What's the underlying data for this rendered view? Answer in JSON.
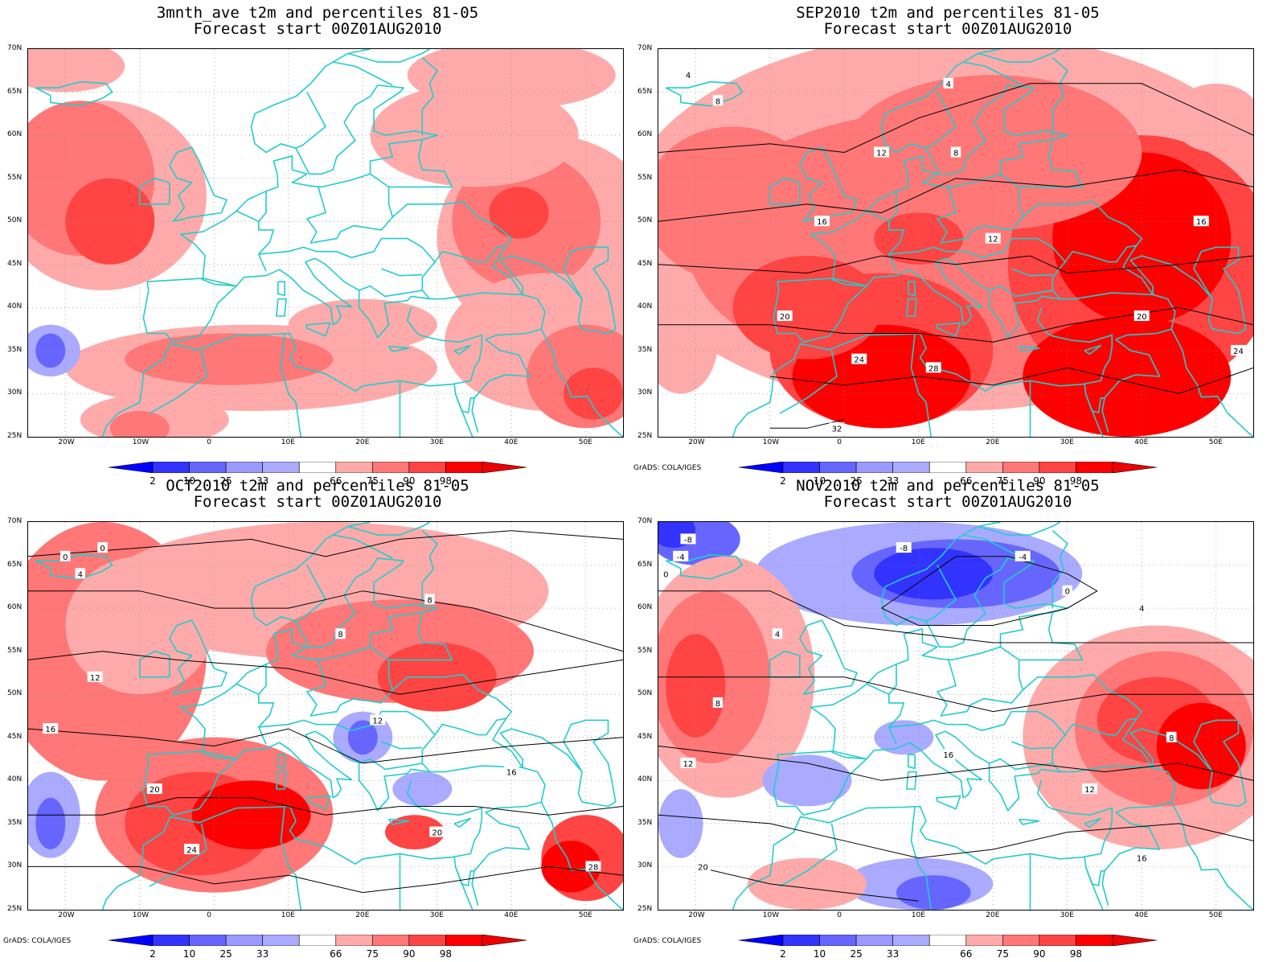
{
  "panels": [
    {
      "id": "p1",
      "title_line1": "3mnth_ave t2m and percentiles 81-05",
      "title_line2": "Forecast start 00Z01AUG2010",
      "credit": ""
    },
    {
      "id": "p2",
      "title_line1": "SEP2010 t2m and percentiles 81-05",
      "title_line2": "Forecast start 00Z01AUG2010",
      "credit": "GrADS: COLA/IGES"
    },
    {
      "id": "p3",
      "title_line1": "OCT2010 t2m and percentiles 81-05",
      "title_line2": "Forecast start 00Z01AUG2010",
      "credit": "GrADS: COLA/IGES"
    },
    {
      "id": "p4",
      "title_line1": "NOV2010 t2m and percentiles 81-05",
      "title_line2": "Forecast start 00Z01AUG2010",
      "credit": "GrADS: COLA/IGES"
    }
  ],
  "axes": {
    "lat_labels": [
      "70N",
      "65N",
      "60N",
      "55N",
      "50N",
      "45N",
      "40N",
      "35N",
      "30N",
      "25N"
    ],
    "lon_labels": [
      "20W",
      "10W",
      "0",
      "10E",
      "20E",
      "30E",
      "40E",
      "50E"
    ],
    "lat_range": [
      25,
      70
    ],
    "lon_range": [
      -25,
      55
    ]
  },
  "colorbar": {
    "labels": [
      "2",
      "10",
      "25",
      "33",
      "66",
      "75",
      "90",
      "98"
    ],
    "colors": [
      "#0000ff",
      "#3333ff",
      "#6666ff",
      "#9999ff",
      "#aaaaff",
      "#ffffff",
      "#ffaaaa",
      "#ff7777",
      "#ff4444",
      "#ff0000",
      "#ee0000"
    ]
  },
  "colors": {
    "coastline": "#22cccc",
    "contour": "#000000",
    "warm_1": "#ffaaaa",
    "warm_2": "#ff7777",
    "warm_3": "#ff4444",
    "warm_4": "#ff0000",
    "cold_1": "#aaaaff",
    "cold_2": "#6666ff",
    "cold_3": "#3333ff",
    "cold_4": "#0000ff"
  },
  "contour_labels": {
    "p2": [
      "4",
      "8",
      "12",
      "16",
      "20",
      "24",
      "28",
      "32",
      "4",
      "8",
      "12",
      "16",
      "20",
      "24"
    ],
    "p3": [
      "0",
      "4",
      "8",
      "12",
      "16",
      "20",
      "24",
      "28",
      "0",
      "8",
      "12",
      "16",
      "20"
    ],
    "p4": [
      "-8",
      "-4",
      "0",
      "4",
      "8",
      "12",
      "16",
      "20",
      "-8",
      "-4",
      "0",
      "4",
      "8",
      "12",
      "16"
    ]
  }
}
